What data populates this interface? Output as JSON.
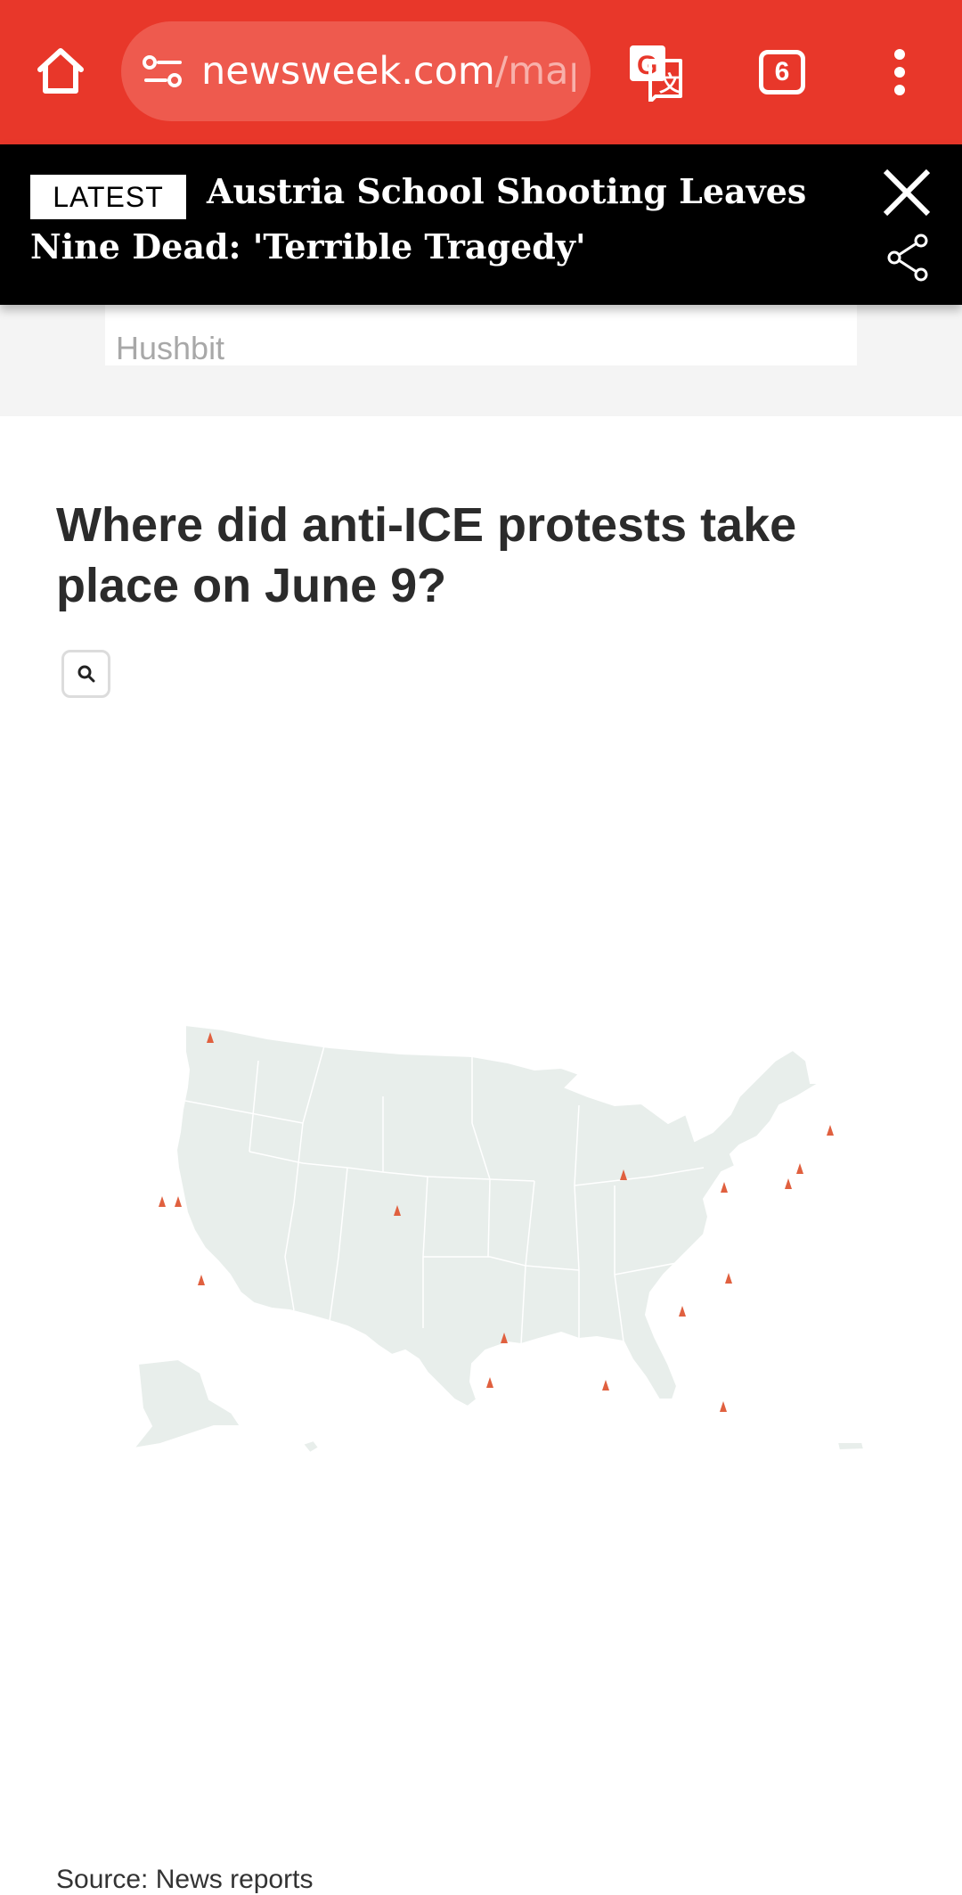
{
  "browser": {
    "url_domain": "newsweek.com",
    "url_path": "/map",
    "tab_count": "6",
    "icons": {
      "home": "home-icon",
      "site_settings": "tune-icon",
      "translate": "translate-icon",
      "tabs": "tab-switcher-icon",
      "menu": "more-vert-icon"
    },
    "colors": {
      "toolbar": "#e8372a",
      "urlbar": "#ee5a4e"
    }
  },
  "breaking": {
    "badge": "LATEST",
    "headline": "Austria School Shooting Leaves Nine Dead: 'Terrible Tragedy'"
  },
  "ad": {
    "label": "Hushbit"
  },
  "article": {
    "map_title": "Where did anti-ICE protests take place on June 9?",
    "source": "Source: News reports"
  },
  "map": {
    "marker_color": "#e0603f",
    "land_color": "#e8eeeb",
    "protest_markers": 17
  }
}
